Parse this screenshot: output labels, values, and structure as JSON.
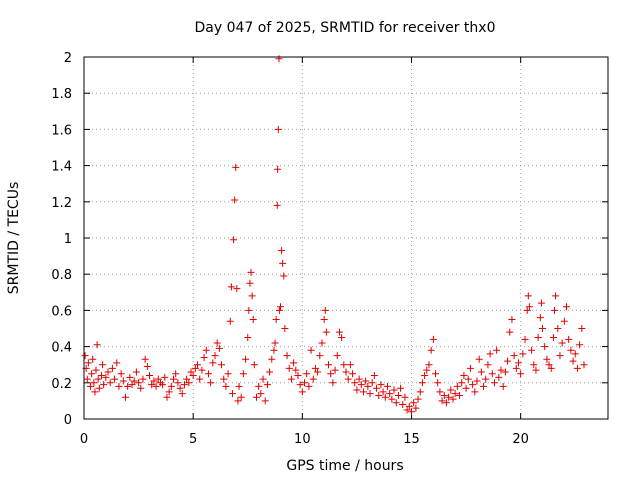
{
  "chart_data": {
    "type": "scatter",
    "title": "Day 047 of 2025, SRMTID for receiver thx0",
    "xlabel": "GPS time / hours",
    "ylabel": "SRMTID / TECUs",
    "xlim": [
      0,
      24
    ],
    "ylim": [
      0,
      2
    ],
    "xticks": [
      0,
      5,
      10,
      15,
      20
    ],
    "yticks": [
      0,
      0.2,
      0.4,
      0.6,
      0.8,
      1,
      1.2,
      1.4,
      1.6,
      1.8,
      2
    ],
    "ytick_labels": [
      "0",
      "0.2",
      "0.4",
      "0.6",
      "0.8",
      "1",
      "1.2",
      "1.4",
      "1.6",
      "1.8",
      "2"
    ],
    "grid": true,
    "marker": "+",
    "marker_color": "#e00000",
    "series": [
      {
        "name": "SRMTID",
        "points": [
          [
            0.05,
            0.35
          ],
          [
            0.1,
            0.28
          ],
          [
            0.15,
            0.22
          ],
          [
            0.2,
            0.31
          ],
          [
            0.3,
            0.18
          ],
          [
            0.35,
            0.25
          ],
          [
            0.4,
            0.33
          ],
          [
            0.45,
            0.2
          ],
          [
            0.5,
            0.15
          ],
          [
            0.55,
            0.27
          ],
          [
            0.6,
            0.41
          ],
          [
            0.65,
            0.22
          ],
          [
            0.7,
            0.17
          ],
          [
            0.8,
            0.24
          ],
          [
            0.85,
            0.3
          ],
          [
            0.9,
            0.19
          ],
          [
            1.0,
            0.23
          ],
          [
            1.1,
            0.26
          ],
          [
            1.2,
            0.2
          ],
          [
            1.3,
            0.28
          ],
          [
            1.4,
            0.22
          ],
          [
            1.5,
            0.31
          ],
          [
            1.6,
            0.18
          ],
          [
            1.7,
            0.25
          ],
          [
            1.8,
            0.21
          ],
          [
            1.9,
            0.12
          ],
          [
            2.0,
            0.18
          ],
          [
            2.1,
            0.23
          ],
          [
            2.2,
            0.19
          ],
          [
            2.3,
            0.21
          ],
          [
            2.4,
            0.26
          ],
          [
            2.5,
            0.2
          ],
          [
            2.6,
            0.17
          ],
          [
            2.7,
            0.22
          ],
          [
            2.8,
            0.33
          ],
          [
            2.9,
            0.29
          ],
          [
            3.0,
            0.24
          ],
          [
            3.1,
            0.19
          ],
          [
            3.2,
            0.21
          ],
          [
            3.3,
            0.18
          ],
          [
            3.4,
            0.22
          ],
          [
            3.5,
            0.2
          ],
          [
            3.6,
            0.19
          ],
          [
            3.7,
            0.23
          ],
          [
            3.8,
            0.12
          ],
          [
            3.9,
            0.15
          ],
          [
            4.0,
            0.18
          ],
          [
            4.1,
            0.22
          ],
          [
            4.2,
            0.25
          ],
          [
            4.3,
            0.2
          ],
          [
            4.4,
            0.17
          ],
          [
            4.5,
            0.14
          ],
          [
            4.6,
            0.19
          ],
          [
            4.7,
            0.22
          ],
          [
            4.8,
            0.2
          ],
          [
            4.9,
            0.26
          ],
          [
            5.0,
            0.24
          ],
          [
            5.1,
            0.28
          ],
          [
            5.2,
            0.3
          ],
          [
            5.3,
            0.22
          ],
          [
            5.4,
            0.27
          ],
          [
            5.5,
            0.34
          ],
          [
            5.6,
            0.38
          ],
          [
            5.7,
            0.25
          ],
          [
            5.8,
            0.2
          ],
          [
            5.9,
            0.31
          ],
          [
            6.0,
            0.35
          ],
          [
            6.1,
            0.42
          ],
          [
            6.2,
            0.39
          ],
          [
            6.3,
            0.3
          ],
          [
            6.4,
            0.22
          ],
          [
            6.5,
            0.18
          ],
          [
            6.6,
            0.25
          ],
          [
            6.7,
            0.54
          ],
          [
            6.75,
            0.73
          ],
          [
            6.8,
            0.14
          ],
          [
            6.85,
            0.99
          ],
          [
            6.9,
            1.21
          ],
          [
            6.95,
            1.39
          ],
          [
            7.0,
            0.72
          ],
          [
            7.05,
            0.1
          ],
          [
            7.1,
            0.18
          ],
          [
            7.2,
            0.12
          ],
          [
            7.3,
            0.25
          ],
          [
            7.4,
            0.33
          ],
          [
            7.5,
            0.45
          ],
          [
            7.55,
            0.6
          ],
          [
            7.6,
            0.75
          ],
          [
            7.65,
            0.81
          ],
          [
            7.7,
            0.68
          ],
          [
            7.75,
            0.55
          ],
          [
            7.8,
            0.3
          ],
          [
            7.9,
            0.12
          ],
          [
            8.0,
            0.18
          ],
          [
            8.1,
            0.14
          ],
          [
            8.2,
            0.22
          ],
          [
            8.3,
            0.1
          ],
          [
            8.4,
            0.19
          ],
          [
            8.5,
            0.26
          ],
          [
            8.6,
            0.33
          ],
          [
            8.7,
            0.38
          ],
          [
            8.75,
            0.42
          ],
          [
            8.8,
            0.55
          ],
          [
            8.85,
            1.18
          ],
          [
            8.87,
            1.38
          ],
          [
            8.9,
            1.6
          ],
          [
            8.93,
            1.99
          ],
          [
            8.95,
            0.6
          ],
          [
            9.0,
            0.62
          ],
          [
            9.05,
            0.93
          ],
          [
            9.1,
            0.86
          ],
          [
            9.15,
            0.79
          ],
          [
            9.2,
            0.5
          ],
          [
            9.3,
            0.35
          ],
          [
            9.4,
            0.28
          ],
          [
            9.5,
            0.22
          ],
          [
            9.6,
            0.31
          ],
          [
            9.7,
            0.27
          ],
          [
            9.8,
            0.24
          ],
          [
            9.9,
            0.19
          ],
          [
            10.0,
            0.15
          ],
          [
            10.1,
            0.2
          ],
          [
            10.2,
            0.25
          ],
          [
            10.3,
            0.18
          ],
          [
            10.4,
            0.38
          ],
          [
            10.5,
            0.22
          ],
          [
            10.6,
            0.28
          ],
          [
            10.7,
            0.26
          ],
          [
            10.8,
            0.35
          ],
          [
            10.9,
            0.42
          ],
          [
            11.0,
            0.55
          ],
          [
            11.05,
            0.6
          ],
          [
            11.1,
            0.48
          ],
          [
            11.2,
            0.3
          ],
          [
            11.3,
            0.25
          ],
          [
            11.4,
            0.2
          ],
          [
            11.5,
            0.27
          ],
          [
            11.6,
            0.35
          ],
          [
            11.7,
            0.48
          ],
          [
            11.8,
            0.45
          ],
          [
            11.9,
            0.3
          ],
          [
            12.0,
            0.26
          ],
          [
            12.1,
            0.22
          ],
          [
            12.2,
            0.3
          ],
          [
            12.3,
            0.25
          ],
          [
            12.4,
            0.2
          ],
          [
            12.5,
            0.16
          ],
          [
            12.6,
            0.22
          ],
          [
            12.7,
            0.19
          ],
          [
            12.8,
            0.15
          ],
          [
            12.9,
            0.21
          ],
          [
            13.0,
            0.18
          ],
          [
            13.1,
            0.14
          ],
          [
            13.2,
            0.2
          ],
          [
            13.3,
            0.24
          ],
          [
            13.4,
            0.17
          ],
          [
            13.5,
            0.13
          ],
          [
            13.6,
            0.19
          ],
          [
            13.7,
            0.15
          ],
          [
            13.8,
            0.12
          ],
          [
            13.9,
            0.18
          ],
          [
            14.0,
            0.14
          ],
          [
            14.1,
            0.11
          ],
          [
            14.2,
            0.16
          ],
          [
            14.3,
            0.09
          ],
          [
            14.4,
            0.13
          ],
          [
            14.5,
            0.17
          ],
          [
            14.6,
            0.08
          ],
          [
            14.7,
            0.12
          ],
          [
            14.8,
            0.05
          ],
          [
            14.9,
            0.07
          ],
          [
            15.0,
            0.04
          ],
          [
            15.1,
            0.09
          ],
          [
            15.2,
            0.06
          ],
          [
            15.3,
            0.11
          ],
          [
            15.4,
            0.15
          ],
          [
            15.5,
            0.2
          ],
          [
            15.6,
            0.24
          ],
          [
            15.7,
            0.27
          ],
          [
            15.8,
            0.3
          ],
          [
            15.9,
            0.38
          ],
          [
            16.0,
            0.44
          ],
          [
            16.1,
            0.25
          ],
          [
            16.2,
            0.2
          ],
          [
            16.3,
            0.15
          ],
          [
            16.4,
            0.1
          ],
          [
            16.5,
            0.13
          ],
          [
            16.6,
            0.09
          ],
          [
            16.7,
            0.12
          ],
          [
            16.8,
            0.16
          ],
          [
            16.9,
            0.11
          ],
          [
            17.0,
            0.14
          ],
          [
            17.1,
            0.18
          ],
          [
            17.2,
            0.13
          ],
          [
            17.3,
            0.2
          ],
          [
            17.4,
            0.24
          ],
          [
            17.5,
            0.17
          ],
          [
            17.6,
            0.22
          ],
          [
            17.7,
            0.28
          ],
          [
            17.8,
            0.19
          ],
          [
            17.9,
            0.15
          ],
          [
            18.0,
            0.21
          ],
          [
            18.1,
            0.33
          ],
          [
            18.2,
            0.26
          ],
          [
            18.3,
            0.18
          ],
          [
            18.4,
            0.22
          ],
          [
            18.5,
            0.3
          ],
          [
            18.6,
            0.36
          ],
          [
            18.7,
            0.25
          ],
          [
            18.8,
            0.2
          ],
          [
            18.9,
            0.38
          ],
          [
            19.0,
            0.23
          ],
          [
            19.1,
            0.27
          ],
          [
            19.2,
            0.18
          ],
          [
            19.3,
            0.26
          ],
          [
            19.4,
            0.32
          ],
          [
            19.5,
            0.48
          ],
          [
            19.6,
            0.55
          ],
          [
            19.7,
            0.35
          ],
          [
            19.8,
            0.28
          ],
          [
            19.9,
            0.31
          ],
          [
            20.0,
            0.25
          ],
          [
            20.1,
            0.36
          ],
          [
            20.2,
            0.44
          ],
          [
            20.3,
            0.6
          ],
          [
            20.35,
            0.68
          ],
          [
            20.4,
            0.62
          ],
          [
            20.5,
            0.38
          ],
          [
            20.6,
            0.3
          ],
          [
            20.7,
            0.27
          ],
          [
            20.8,
            0.45
          ],
          [
            20.9,
            0.56
          ],
          [
            20.95,
            0.64
          ],
          [
            21.0,
            0.5
          ],
          [
            21.1,
            0.4
          ],
          [
            21.2,
            0.33
          ],
          [
            21.3,
            0.3
          ],
          [
            21.4,
            0.28
          ],
          [
            21.5,
            0.45
          ],
          [
            21.55,
            0.6
          ],
          [
            21.6,
            0.68
          ],
          [
            21.7,
            0.5
          ],
          [
            21.8,
            0.35
          ],
          [
            21.9,
            0.42
          ],
          [
            22.0,
            0.54
          ],
          [
            22.1,
            0.62
          ],
          [
            22.2,
            0.44
          ],
          [
            22.3,
            0.38
          ],
          [
            22.4,
            0.32
          ],
          [
            22.5,
            0.36
          ],
          [
            22.6,
            0.28
          ],
          [
            22.7,
            0.41
          ],
          [
            22.8,
            0.5
          ],
          [
            22.9,
            0.3
          ]
        ]
      }
    ]
  }
}
